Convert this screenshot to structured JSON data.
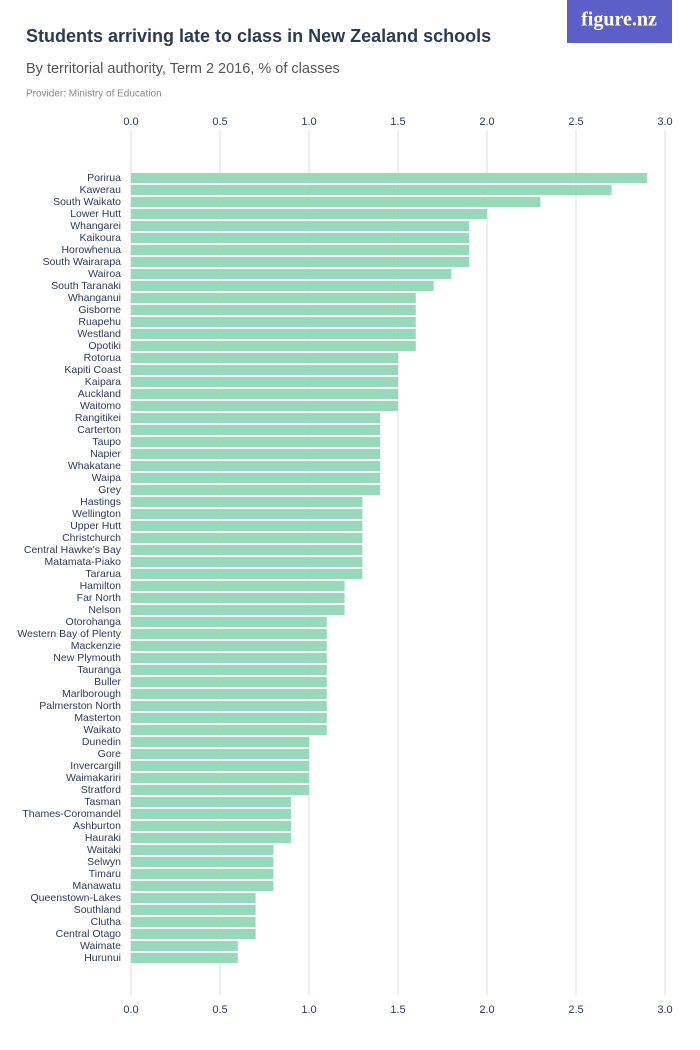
{
  "logo": "figure.nz",
  "chart_data": {
    "type": "hbar",
    "title": "Students arriving late to class in New Zealand schools",
    "subtitle": "By territorial authority, Term 2 2016, % of classes",
    "source": "Provider: Ministry of Education",
    "color": "#98d8bb",
    "grid": true,
    "xlim": [
      0,
      3
    ],
    "xticks": [
      {
        "value": 0,
        "label": "0.0"
      },
      0.5,
      {
        "value": 1,
        "label": "1.0"
      },
      1.5,
      {
        "value": 2,
        "label": "2.0"
      },
      2.5,
      {
        "value": 3,
        "label": "3.0"
      }
    ],
    "categories": [
      "Porirua",
      "Kawerau",
      "South Waikato",
      "Lower Hutt",
      "Whangarei",
      "Kaikoura",
      "Horowhenua",
      "South Wairarapa",
      "Wairoa",
      "South Taranaki",
      "Whanganui",
      "Gisborne",
      "Ruapehu",
      "Westland",
      "Opotiki",
      "Rotorua",
      "Kapiti Coast",
      "Kaipara",
      "Auckland",
      "Waitomo",
      "Rangitikei",
      "Carterton",
      "Taupo",
      "Napier",
      "Whakatane",
      "Waipa",
      "Grey",
      "Hastings",
      "Wellington",
      "Upper Hutt",
      "Christchurch",
      "Central Hawke's Bay",
      "Matamata-Piako",
      "Tararua",
      "Hamilton",
      "Far North",
      "Nelson",
      "Otorohanga",
      "Western Bay of Plenty",
      "Mackenzie",
      "New Plymouth",
      "Tauranga",
      "Buller",
      "Marlborough",
      "Palmerston North",
      "Masterton",
      "Waikato",
      "Dunedin",
      "Gore",
      "Invercargill",
      "Waimakariri",
      "Stratford",
      "Tasman",
      "Thames-Coromandel",
      "Ashburton",
      "Hauraki",
      "Waitaki",
      "Selwyn",
      "Timaru",
      "Manawatu",
      "Queenstown-Lakes",
      "Southland",
      "Clutha",
      "Central Otago",
      "Waimate",
      "Hurunui"
    ],
    "values": [
      2.9,
      2.7,
      2.3,
      2.0,
      1.9,
      1.9,
      1.9,
      1.9,
      1.8,
      1.7,
      1.6,
      1.6,
      1.6,
      1.6,
      1.6,
      1.5,
      1.5,
      1.5,
      1.5,
      1.5,
      1.4,
      1.4,
      1.4,
      1.4,
      1.4,
      1.4,
      1.4,
      1.3,
      1.3,
      1.3,
      1.3,
      1.3,
      1.3,
      1.3,
      1.2,
      1.2,
      1.2,
      1.1,
      1.1,
      1.1,
      1.1,
      1.1,
      1.1,
      1.1,
      1.1,
      1.1,
      1.1,
      1.0,
      1.0,
      1.0,
      1.0,
      1.0,
      0.9,
      0.9,
      0.9,
      0.9,
      0.8,
      0.8,
      0.8,
      0.8,
      0.7,
      0.7,
      0.7,
      0.7,
      0.6,
      0.6
    ]
  }
}
